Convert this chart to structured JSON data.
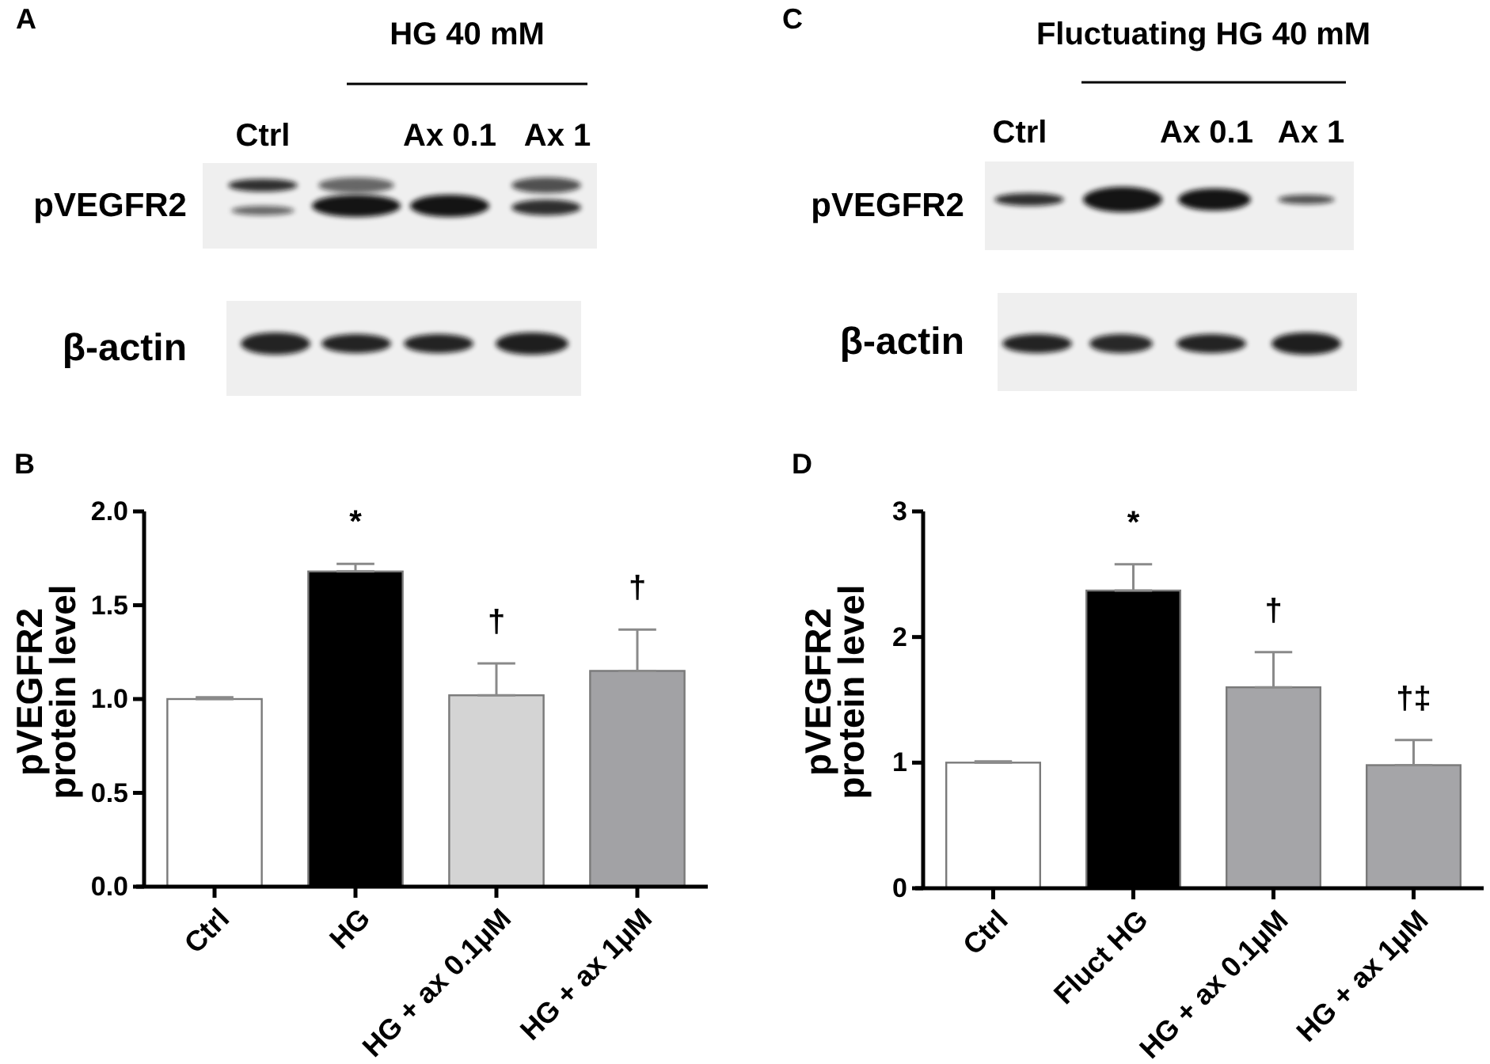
{
  "chart_data": [
    {
      "type": "other",
      "title": "A",
      "annotations": [
        "HG 40 mM",
        "Ctrl",
        "Ax 0.1",
        "Ax 1",
        "pVEGFR2",
        "β-actin"
      ]
    },
    {
      "type": "other",
      "title": "C",
      "annotations": [
        "Fluctuating HG 40 mM",
        "Ctrl",
        "Ax 0.1",
        "Ax 1",
        "pVEGFR2",
        "β-actin"
      ]
    },
    {
      "type": "bar",
      "title": "B",
      "ylabel": "pVEGFR2\nprotein level",
      "categories": [
        "Ctrl",
        "HG",
        "HG + ax 0.1μM",
        "HG + ax 1μM"
      ],
      "values": [
        1.0,
        1.68,
        1.02,
        1.15
      ],
      "colors": [
        "#ffffff",
        "#000000",
        "#d4d4d4",
        "#a2a2a5"
      ],
      "errors": [
        [
          1.0,
          1.01
        ],
        [
          1.68,
          1.72
        ],
        [
          1.02,
          1.19
        ],
        [
          1.15,
          1.37
        ]
      ],
      "ylim": [
        0,
        2
      ],
      "yticks": [
        {
          "value": 0,
          "label": "0.0"
        },
        0.5,
        {
          "value": 1,
          "label": "1.0"
        },
        1.5,
        {
          "value": 2,
          "label": "2.0"
        }
      ],
      "annotations": [
        "*",
        "†",
        "†"
      ]
    },
    {
      "type": "bar",
      "title": "D",
      "ylabel": "pVEGFR2\nprotein level",
      "categories": [
        "Ctrl",
        "Fluct HG",
        "HG + ax 0.1μM",
        "HG + ax 1μM"
      ],
      "values": [
        1.0,
        2.37,
        1.6,
        0.98
      ],
      "colors": [
        "#ffffff",
        "#000000",
        "#a5a5a8",
        "#a5a5a8"
      ],
      "errors": [
        [
          1.0,
          1.01
        ],
        [
          2.37,
          2.58
        ],
        [
          1.6,
          1.88
        ],
        [
          0.98,
          1.18
        ]
      ],
      "ylim": [
        0,
        3
      ],
      "yticks": [
        0,
        1,
        2,
        3
      ],
      "annotations": [
        "*",
        "†",
        "†‡"
      ]
    }
  ]
}
